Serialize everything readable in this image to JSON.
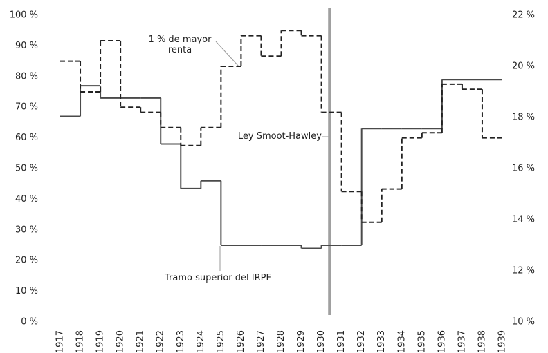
{
  "chart_data": {
    "type": "step",
    "x": [
      1917,
      1918,
      1919,
      1920,
      1921,
      1922,
      1923,
      1924,
      1925,
      1926,
      1927,
      1928,
      1929,
      1930,
      1931,
      1932,
      1933,
      1934,
      1935,
      1936,
      1937,
      1938
    ],
    "xlim": [
      1917,
      1939
    ],
    "xticks": [
      1917,
      1918,
      1919,
      1920,
      1921,
      1922,
      1923,
      1924,
      1925,
      1926,
      1927,
      1928,
      1929,
      1930,
      1931,
      1932,
      1933,
      1934,
      1935,
      1936,
      1937,
      1938,
      1939
    ],
    "ylim": [
      0,
      100
    ],
    "yticks": [
      {
        "value": 0,
        "label": "0 %"
      },
      {
        "value": 10,
        "label": "10 %"
      },
      {
        "value": 20,
        "label": "20 %"
      },
      {
        "value": 30,
        "label": "30 %"
      },
      {
        "value": 40,
        "label": "40 %"
      },
      {
        "value": 50,
        "label": "50 %"
      },
      {
        "value": 60,
        "label": "60 %"
      },
      {
        "value": 70,
        "label": "70 %"
      },
      {
        "value": 80,
        "label": "80 %"
      },
      {
        "value": 90,
        "label": "90 %"
      },
      {
        "value": 100,
        "label": "100 %"
      }
    ],
    "y2lim": [
      10,
      22
    ],
    "y2ticks": [
      {
        "value": 10,
        "label": "10 %"
      },
      {
        "value": 12,
        "label": "12 %"
      },
      {
        "value": 14,
        "label": "14 %"
      },
      {
        "value": 16,
        "label": "16 %"
      },
      {
        "value": 18,
        "label": "18 %"
      },
      {
        "value": 20,
        "label": "20 %"
      },
      {
        "value": 22,
        "label": "22 %"
      }
    ],
    "series": [
      {
        "name": "Tramo superior del IRPF",
        "color": "#4a4a4a",
        "dash": false,
        "values": [
          67,
          77,
          73,
          73,
          73,
          58,
          43.5,
          46,
          25,
          25,
          25,
          25,
          24,
          25,
          25,
          63,
          63,
          63,
          63,
          79,
          79,
          79
        ]
      },
      {
        "name": "1 % de mayor renta",
        "color": "#222222",
        "dash": true,
        "axis": "y2",
        "values": [
          20.2,
          19.0,
          21.0,
          18.4,
          18.2,
          17.6,
          16.9,
          17.6,
          20.0,
          21.2,
          20.4,
          21.4,
          21.2,
          18.2,
          15.1,
          13.9,
          15.2,
          17.2,
          17.4,
          19.3,
          19.1,
          17.2
        ]
      }
    ],
    "annotations": [
      {
        "text": "Ley Smoot-Hawley",
        "x": 1930.4,
        "color": "#a0a0a0"
      }
    ],
    "grid": false
  }
}
